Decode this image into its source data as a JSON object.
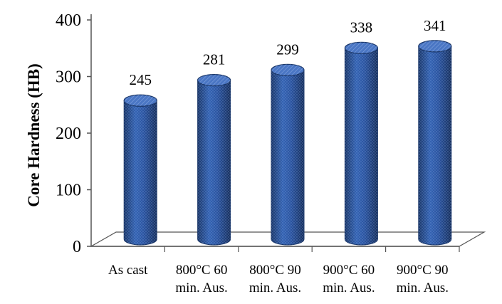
{
  "chart_data": {
    "type": "bar",
    "style": "3d-cylinder",
    "title": "",
    "xlabel": "",
    "ylabel": "Core Hardness (HB)",
    "ylim": [
      0,
      400
    ],
    "yticks": [
      0,
      100,
      200,
      300,
      400
    ],
    "grid": false,
    "legend": "none",
    "categories": [
      [
        "As cast"
      ],
      [
        "800°C 60",
        "min. Aus."
      ],
      [
        "800°C 90",
        "min. Aus."
      ],
      [
        "900°C 60",
        "min. Aus."
      ],
      [
        "900°C 90",
        "min. Aus."
      ]
    ],
    "values": [
      245,
      281,
      299,
      338,
      341
    ],
    "data_labels": [
      "245",
      "281",
      "299",
      "338",
      "341"
    ],
    "colors": {
      "bar": "#2b54a0",
      "bar_dark": "#1a3668",
      "bar_light": "#4a76c4",
      "axis": "#555555",
      "floor": "#ffffff"
    }
  }
}
